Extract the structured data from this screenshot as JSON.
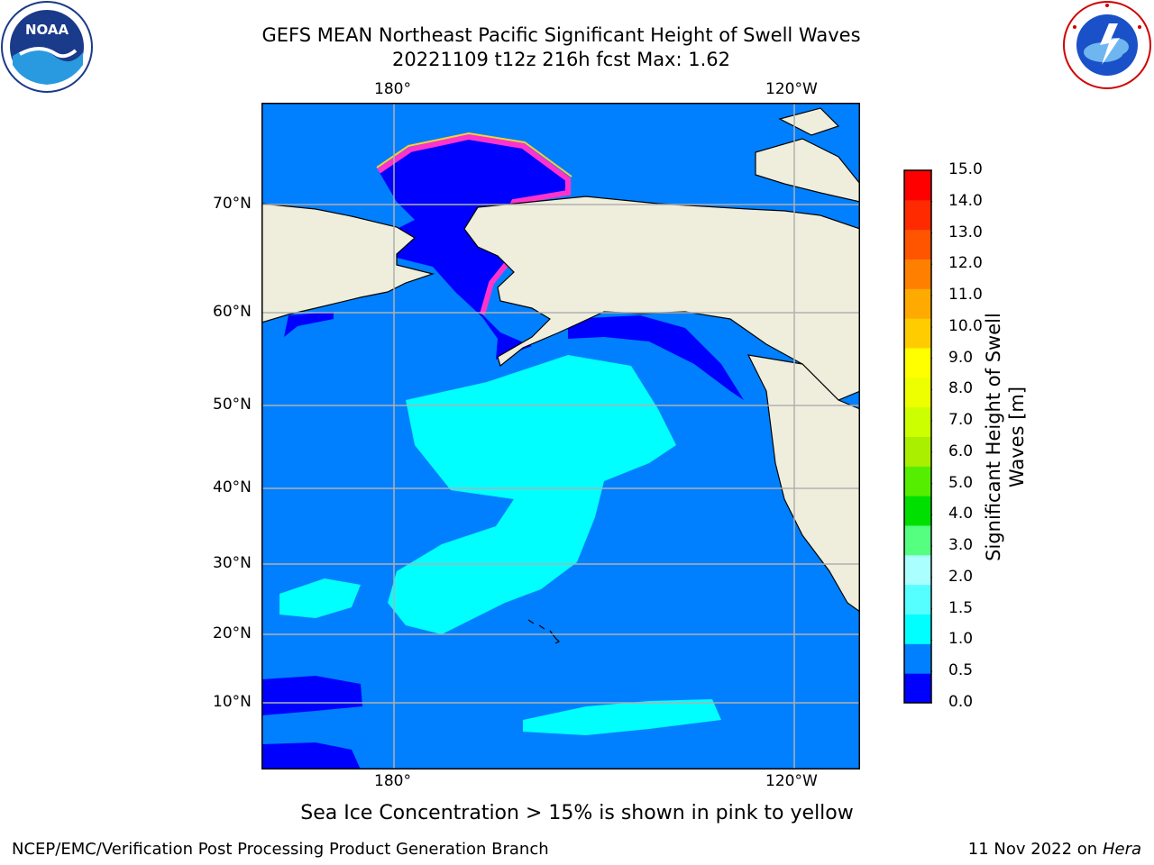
{
  "title": {
    "line1": "GEFS MEAN Northeast Pacific Significant Height of Swell Waves",
    "line2": "20221109 t12z 216h fcst   Max: 1.62"
  },
  "map": {
    "lon_labels": [
      "180°",
      "120°W"
    ],
    "lat_labels": [
      "70°N",
      "60°N",
      "50°N",
      "40°N",
      "30°N",
      "20°N",
      "10°N"
    ],
    "colors": {
      "ocean_base": "#0080ff",
      "low_swell": "#0000ff",
      "mid_swell": "#00ffff",
      "land": "#efeedc",
      "grid": "#b0b0b0",
      "ice_edge": "#ff33cc",
      "ice_yellow": "#ffcc33"
    }
  },
  "colorbar": {
    "label": "Significant Height of Swell Waves [m]",
    "ticks": [
      "15.0",
      "14.0",
      "13.0",
      "12.0",
      "11.0",
      "10.0",
      "9.0",
      "8.0",
      "7.0",
      "6.0",
      "5.0",
      "4.0",
      "3.0",
      "2.0",
      "1.5",
      "1.0",
      "0.5",
      "0.0"
    ],
    "colors": [
      "#0000ff",
      "#0080ff",
      "#00ffff",
      "#55ffff",
      "#aaffff",
      "#55ff80",
      "#00e000",
      "#55ee00",
      "#aaee00",
      "#ccff00",
      "#eeff00",
      "#ffff00",
      "#ffcc00",
      "#ffaa00",
      "#ff8000",
      "#ff5500",
      "#ff2a00",
      "#ff0000"
    ]
  },
  "caption": "Sea Ice Concentration > 15% is shown in pink to yellow",
  "footer": {
    "left": "NCEP/EMC/Verification Post Processing Product Generation Branch",
    "date": "11 Nov 2022 on",
    "host": "Hera"
  },
  "logos": {
    "noaa": "NOAA",
    "nws_icon": "nws-lightning-cloud-icon"
  }
}
